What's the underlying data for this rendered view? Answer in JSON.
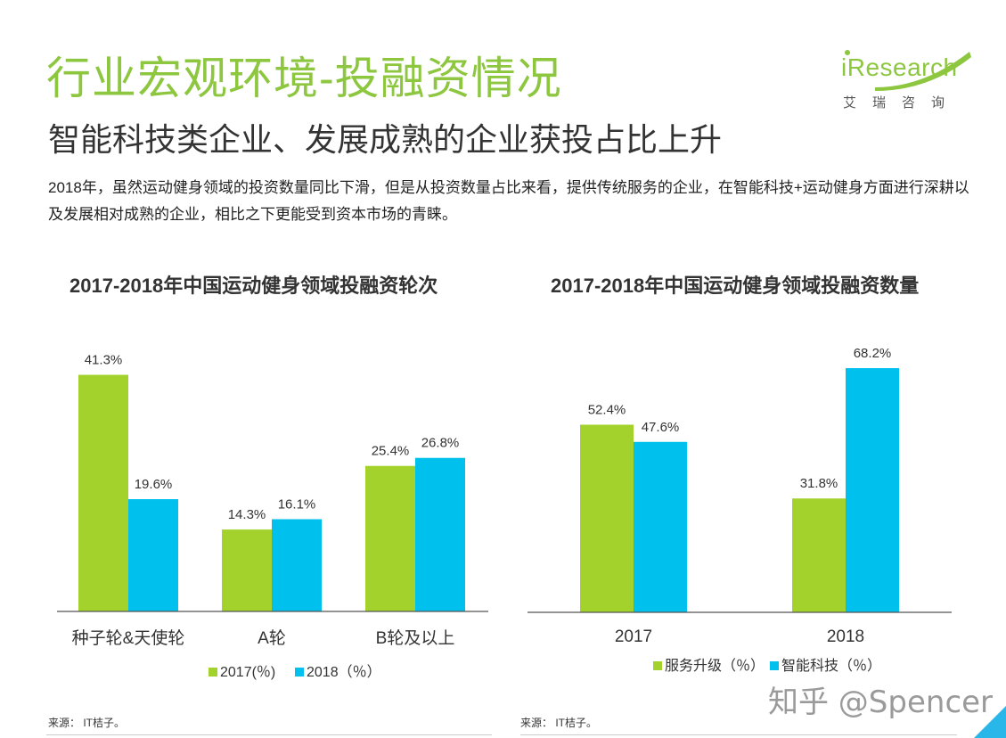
{
  "header": {
    "title": "行业宏观环境-投融资情况",
    "subtitle": "智能科技类企业、发展成熟的企业获投占比上升",
    "body": "2018年，虽然运动健身领域的投资数量同比下滑，但是从投资数量占比来看，提供传统服务的企业，在智能科技+运动健身方面进行深耕以及发展相对成熟的企业，相比之下更能受到资本市场的青睐。"
  },
  "logo": {
    "word": "iResearch",
    "sub": "艾瑞咨询"
  },
  "colors": {
    "green": "#a4d22d",
    "blue": "#00c1ed",
    "accent": "#8dc63f"
  },
  "chart_data": [
    {
      "type": "bar",
      "title": "2017-2018年中国运动健身领域投融资轮次",
      "categories": [
        "种子轮&天使轮",
        "A轮",
        "B轮及以上"
      ],
      "series": [
        {
          "name": "2017(％)",
          "values": [
            41.3,
            14.3,
            25.4
          ],
          "labels": [
            "41.3%",
            "14.3%",
            "25.4%"
          ]
        },
        {
          "name": "2018（％）",
          "values": [
            19.6,
            16.1,
            26.8
          ],
          "labels": [
            "19.6%",
            "16.1%",
            "26.8%"
          ]
        }
      ],
      "ylim": [
        0,
        45
      ],
      "legend": "bottom",
      "source": "来源： IT桔子。"
    },
    {
      "type": "bar",
      "title": "2017-2018年中国运动健身领域投融资数量",
      "categories": [
        "2017",
        "2018"
      ],
      "series": [
        {
          "name": "服务升级（％）",
          "values": [
            52.4,
            31.8
          ],
          "labels": [
            "52.4%",
            "31.8%"
          ]
        },
        {
          "name": "智能科技（％）",
          "values": [
            47.6,
            68.2
          ],
          "labels": [
            "47.6%",
            "68.2%"
          ]
        }
      ],
      "ylim": [
        0,
        72
      ],
      "legend": "bottom",
      "source": "来源： IT桔子。"
    }
  ],
  "watermark": "知乎 @Spencer"
}
